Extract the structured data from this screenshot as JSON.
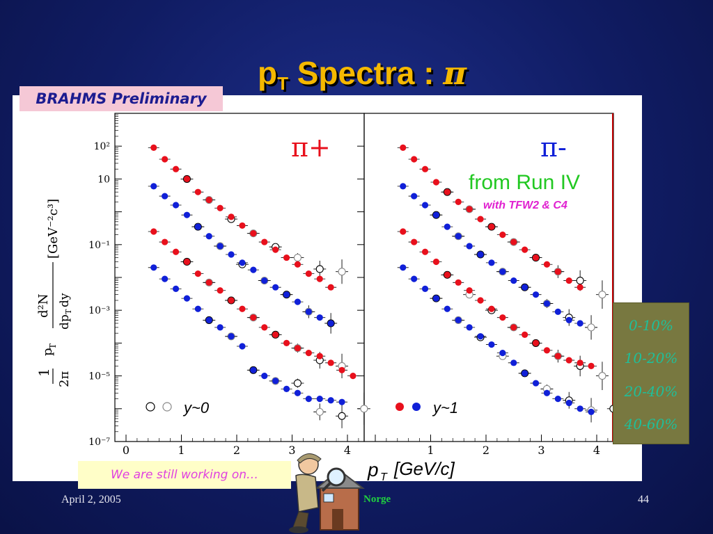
{
  "slide": {
    "title_main": "p",
    "title_sub": "T",
    "title_rest": " Spectra : ",
    "title_symbol": "π",
    "label_preliminary": "BRAHMS Preliminary",
    "note": "We are still working on…",
    "footer_date": "April 2, 2005",
    "footer_place": "Norge",
    "page_number": "44"
  },
  "legend": {
    "centralities": [
      "0-10%",
      "10-20%",
      "20-40%",
      "40-60%"
    ]
  },
  "colors": {
    "bg": "#101c63",
    "title": "#f5b800",
    "red_marker": "#e8101c",
    "blue_marker": "#1020d8",
    "green_text": "#22c822",
    "magenta_text": "#e020d0",
    "legend_text": "#1fbf9a",
    "legend_bg": "#787840"
  },
  "chart_data": {
    "type": "scatter",
    "title": "",
    "xlabel": "p_T [GeV/c]",
    "ylabel": "1/(2π p_T) d²N/(dp_T dy) [GeV⁻²c³]",
    "y_scale": "log",
    "ylim": [
      1e-07,
      1000
    ],
    "x_ticks": [
      "0",
      "1",
      "2",
      "3",
      "4"
    ],
    "y_ticks": [
      "10²",
      "10",
      "10⁻¹",
      "10⁻³",
      "10⁻⁵",
      "10⁻⁷"
    ],
    "panels": [
      {
        "particle": "π+",
        "xlim": [
          0,
          4.5
        ],
        "rapidity_label": "y~0",
        "annotations": [],
        "series": [
          {
            "centrality": "0-10%",
            "closed_color": "red",
            "closed_x": [
              0.5,
              0.7,
              0.9,
              1.1,
              1.3,
              1.5,
              1.7,
              1.9,
              2.1,
              2.3,
              2.5,
              2.7,
              2.9,
              3.1,
              3.3,
              3.5,
              3.7
            ],
            "closed_y": [
              90,
              40,
              20,
              10,
              4,
              2.3,
              1.3,
              0.7,
              0.38,
              0.22,
              0.12,
              0.07,
              0.04,
              0.025,
              0.013,
              0.009,
              0.005
            ],
            "open_x": [
              1.1,
              1.5,
              1.9,
              2.3,
              2.7,
              3.1,
              3.5,
              3.9
            ],
            "open_y": [
              10,
              2.3,
              0.6,
              0.22,
              0.085,
              0.04,
              0.018,
              0.015
            ]
          },
          {
            "centrality": "10-20%",
            "closed_color": "blue",
            "closed_x": [
              0.5,
              0.7,
              0.9,
              1.1,
              1.3,
              1.5,
              1.7,
              1.9,
              2.1,
              2.3,
              2.5,
              2.7,
              2.9,
              3.1,
              3.3,
              3.5,
              3.7
            ],
            "closed_y": [
              6,
              3,
              1.6,
              0.8,
              0.35,
              0.18,
              0.09,
              0.05,
              0.028,
              0.017,
              0.008,
              0.005,
              0.003,
              0.0018,
              0.0009,
              0.0006,
              0.0004
            ],
            "open_x": [
              1.3,
              1.7,
              2.1,
              2.5,
              2.9,
              3.3,
              3.7
            ],
            "open_y": [
              0.35,
              0.09,
              0.025,
              0.008,
              0.003,
              0.0009,
              0.0004
            ]
          },
          {
            "centrality": "20-40%",
            "closed_color": "red",
            "closed_x": [
              0.5,
              0.7,
              0.9,
              1.1,
              1.3,
              1.5,
              1.7,
              1.9,
              2.1,
              2.3,
              2.5,
              2.7,
              2.9,
              3.1,
              3.3,
              3.5,
              3.7,
              3.9,
              4.1
            ],
            "closed_y": [
              0.25,
              0.12,
              0.06,
              0.03,
              0.013,
              0.007,
              0.004,
              0.002,
              0.0011,
              0.0006,
              0.0003,
              0.00018,
              0.0001,
              7e-05,
              5e-05,
              4e-05,
              2.5e-05,
              1.5e-05,
              1e-05
            ],
            "open_x": [
              1.1,
              1.5,
              1.9,
              2.3,
              2.7,
              3.1,
              3.5,
              3.9
            ],
            "open_y": [
              0.03,
              0.007,
              0.002,
              0.0006,
              0.00018,
              7e-05,
              3e-05,
              2e-05
            ]
          },
          {
            "centrality": "40-60%",
            "closed_color": "blue",
            "closed_x": [
              0.5,
              0.7,
              0.9,
              1.1,
              1.3,
              1.5,
              1.7,
              1.9,
              2.1,
              2.3,
              2.5,
              2.7,
              2.9,
              3.1,
              3.3,
              3.5,
              3.7,
              3.9
            ],
            "closed_y": [
              0.02,
              0.009,
              0.0045,
              0.0023,
              0.0011,
              0.0005,
              0.0003,
              0.00016,
              8e-05,
              1.5e-05,
              1e-05,
              7e-06,
              4e-06,
              3e-06,
              2e-06,
              2e-06,
              1.8e-06,
              1.6e-06
            ],
            "open_x": [
              1.5,
              1.9,
              2.3,
              2.7,
              3.1,
              3.5,
              3.9,
              4.3
            ],
            "open_y": [
              0.0005,
              0.00016,
              1.5e-05,
              7e-06,
              6e-06,
              8e-07,
              6e-07,
              1e-06
            ]
          }
        ]
      },
      {
        "particle": "π-",
        "xlim": [
          0,
          4.5
        ],
        "rapidity_label": "y~1",
        "annotations": [
          "from Run IV",
          "with TFW2 & C4"
        ],
        "series": [
          {
            "centrality": "0-10%",
            "closed_color": "red",
            "closed_x": [
              0.5,
              0.7,
              0.9,
              1.1,
              1.3,
              1.5,
              1.7,
              1.9,
              2.1,
              2.3,
              2.5,
              2.7,
              2.9,
              3.1,
              3.3,
              3.5,
              3.7
            ],
            "closed_y": [
              90,
              40,
              20,
              8,
              4,
              2,
              1.2,
              0.6,
              0.35,
              0.2,
              0.12,
              0.07,
              0.04,
              0.025,
              0.015,
              0.008,
              0.005
            ],
            "open_x": [
              1.3,
              1.7,
              2.1,
              2.5,
              2.9,
              3.3,
              3.7,
              4.1
            ],
            "open_y": [
              4,
              1.2,
              0.35,
              0.12,
              0.04,
              0.015,
              0.008,
              0.003
            ]
          },
          {
            "centrality": "10-20%",
            "closed_color": "blue",
            "closed_x": [
              0.5,
              0.7,
              0.9,
              1.1,
              1.3,
              1.5,
              1.7,
              1.9,
              2.1,
              2.3,
              2.5,
              2.7,
              2.9,
              3.1,
              3.3,
              3.5,
              3.7
            ],
            "closed_y": [
              6,
              3,
              1.6,
              0.8,
              0.35,
              0.18,
              0.09,
              0.05,
              0.028,
              0.015,
              0.008,
              0.005,
              0.003,
              0.0016,
              0.0009,
              0.0005,
              0.0004
            ],
            "open_x": [
              1.1,
              1.5,
              1.9,
              2.3,
              2.7,
              3.1,
              3.5,
              3.9
            ],
            "open_y": [
              0.8,
              0.18,
              0.05,
              0.015,
              0.005,
              0.0016,
              0.0006,
              0.0003
            ]
          },
          {
            "centrality": "20-40%",
            "closed_color": "red",
            "closed_x": [
              0.5,
              0.7,
              0.9,
              1.1,
              1.3,
              1.5,
              1.7,
              1.9,
              2.1,
              2.3,
              2.5,
              2.7,
              2.9,
              3.1,
              3.3,
              3.5,
              3.7,
              3.9
            ],
            "closed_y": [
              0.25,
              0.12,
              0.06,
              0.03,
              0.012,
              0.007,
              0.004,
              0.002,
              0.0011,
              0.0006,
              0.0003,
              0.00018,
              0.0001,
              6e-05,
              4e-05,
              3e-05,
              2.5e-05,
              2e-05
            ],
            "open_x": [
              1.3,
              1.7,
              2.1,
              2.5,
              2.9,
              3.3,
              3.7,
              4.1
            ],
            "open_y": [
              0.012,
              0.003,
              0.001,
              0.0003,
              0.0001,
              4e-05,
              2e-05,
              1e-05
            ]
          },
          {
            "centrality": "40-60%",
            "closed_color": "blue",
            "closed_x": [
              0.5,
              0.7,
              0.9,
              1.1,
              1.3,
              1.5,
              1.7,
              1.9,
              2.1,
              2.3,
              2.5,
              2.7,
              2.9,
              3.1,
              3.3,
              3.5,
              3.7,
              3.9
            ],
            "closed_y": [
              0.02,
              0.009,
              0.0045,
              0.0023,
              0.0011,
              0.0005,
              0.0003,
              0.00016,
              9e-05,
              5e-05,
              2.5e-05,
              1.2e-05,
              6e-06,
              3e-06,
              2e-06,
              1.5e-06,
              1e-06,
              8e-07
            ],
            "open_x": [
              1.1,
              1.5,
              1.9,
              2.3,
              2.7,
              3.1,
              3.5,
              3.9,
              4.3
            ],
            "open_y": [
              0.0023,
              0.0005,
              0.00015,
              4e-05,
              1.2e-05,
              4e-06,
              1.8e-06,
              9e-07,
              1e-06
            ]
          }
        ]
      }
    ]
  }
}
